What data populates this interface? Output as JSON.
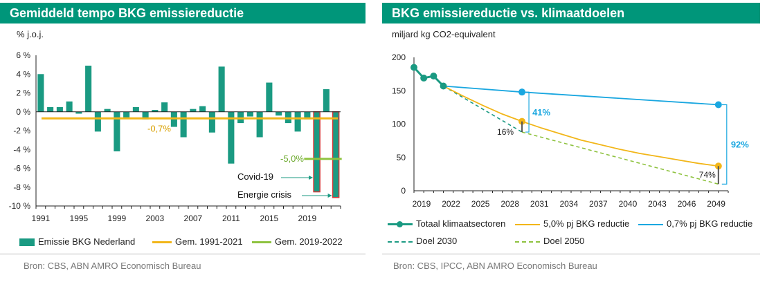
{
  "left": {
    "title": "Gemiddeld tempo BKG emissiereductie",
    "unit": "% j.o.j.",
    "source": "Bron: CBS, ABN AMRO Economisch Bureau",
    "legend": [
      "Emissie BKG Nederland",
      "Gem. 1991-2021",
      "Gem. 2019-2022"
    ]
  },
  "right": {
    "title": "BKG emissiereductie vs. klimaatdoelen",
    "unit": "miljard kg CO2-equivalent",
    "source": "Bron: CBS, IPCC, ABN AMRO Economisch Bureau",
    "legend": [
      "Totaal klimaatsectoren",
      "5,0% pj BKG reductie",
      "0,7% pj BKG reductie",
      "Doel 2030",
      "Doel 2050"
    ]
  },
  "colors": {
    "brand": "#00967a",
    "bar": "#1a9a82",
    "avg_long": "#f2b619",
    "avg_short": "#8ec23f",
    "slow": "#1aa7e0",
    "text_red": "#d23a3a"
  },
  "chart_data": [
    {
      "type": "bar",
      "title": "Gemiddeld tempo BKG emissiereductie",
      "ylabel": "% j.o.j.",
      "ylim": [
        -10,
        6
      ],
      "yticks": [
        "6 %",
        "4 %",
        "2 %",
        "0 %",
        "-2 %",
        "-4 %",
        "-6 %",
        "-8 %",
        "-10 %"
      ],
      "xticks": [
        "1991",
        "1995",
        "1999",
        "2003",
        "2007",
        "2011",
        "2015",
        "2019"
      ],
      "categories": [
        1991,
        1992,
        1993,
        1994,
        1995,
        1996,
        1997,
        1998,
        1999,
        2000,
        2001,
        2002,
        2003,
        2004,
        2005,
        2006,
        2007,
        2008,
        2009,
        2010,
        2011,
        2012,
        2013,
        2014,
        2015,
        2016,
        2017,
        2018,
        2019,
        2020,
        2021,
        2022
      ],
      "series": [
        {
          "name": "Emissie BKG Nederland",
          "values": [
            4.0,
            0.5,
            0.5,
            1.1,
            -0.2,
            4.9,
            -2.1,
            0.3,
            -4.2,
            -0.6,
            0.5,
            -0.8,
            0.2,
            1.0,
            -1.6,
            -2.7,
            0.3,
            0.6,
            -2.2,
            4.8,
            -5.5,
            -1.2,
            -0.5,
            -2.7,
            3.1,
            -0.4,
            -1.2,
            -2.1,
            -0.8,
            -8.5,
            2.4,
            -9.1
          ]
        },
        {
          "name": "Gem. 1991-2021",
          "value": -0.7
        },
        {
          "name": "Gem. 2019-2022",
          "value": -5.0
        }
      ],
      "annotations": [
        "-0,7%",
        "-5,0%",
        "Covid-19",
        "Energie crisis"
      ]
    },
    {
      "type": "line",
      "title": "BKG emissiereductie vs. klimaatdoelen",
      "ylabel": "miljard kg CO2-equivalent",
      "ylim": [
        0,
        200
      ],
      "yticks": [
        "200",
        "150",
        "100",
        "50",
        "0"
      ],
      "xticks": [
        "2019",
        "2022",
        "2025",
        "2028",
        "2031",
        "2034",
        "2037",
        "2040",
        "2043",
        "2046",
        "2049"
      ],
      "series": [
        {
          "name": "Totaal klimaatsectoren",
          "x": [
            2019,
            2020,
            2021,
            2022
          ],
          "y": [
            185,
            169,
            172,
            157
          ]
        },
        {
          "name": "5,0% pj BKG reductie",
          "x": [
            2022,
            2024,
            2026,
            2028,
            2030,
            2032,
            2034,
            2036,
            2038,
            2040,
            2042,
            2044,
            2046,
            2048,
            2050
          ],
          "y": [
            157,
            142,
            128,
            115,
            104,
            94,
            85,
            76,
            69,
            62,
            56,
            51,
            46,
            41,
            37
          ]
        },
        {
          "name": "0,7% pj BKG reductie",
          "x": [
            2022,
            2030,
            2050
          ],
          "y": [
            157,
            148,
            129
          ]
        },
        {
          "name": "Doel 2030",
          "x": [
            2022,
            2030
          ],
          "y": [
            157,
            88
          ]
        },
        {
          "name": "Doel 2050",
          "x": [
            2030,
            2050
          ],
          "y": [
            88,
            10
          ]
        }
      ],
      "annotations": [
        "41%",
        "16%",
        "92%",
        "74%"
      ]
    }
  ]
}
